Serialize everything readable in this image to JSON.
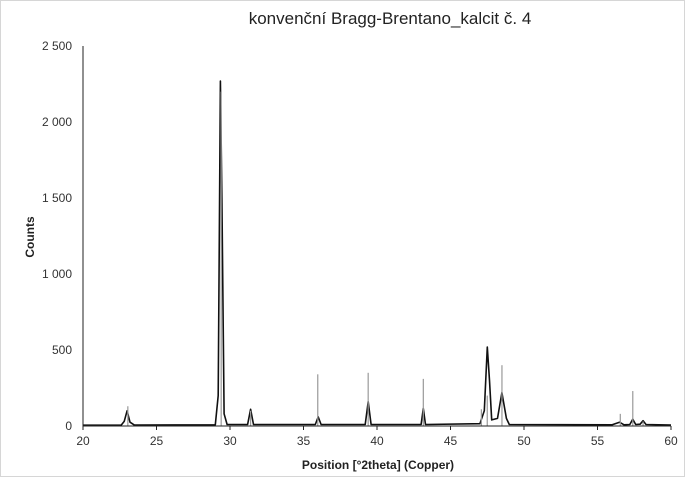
{
  "chart_data": {
    "type": "line",
    "title": "konvenční Bragg-Brentano_kalcit č. 4",
    "xlabel": "Position [°2theta] (Copper)",
    "ylabel": "Counts",
    "xlim": [
      20,
      60
    ],
    "ylim": [
      0,
      2500
    ],
    "x_ticks": [
      "20",
      "25",
      "30",
      "35",
      "40",
      "45",
      "50",
      "55",
      "60"
    ],
    "y_ticks": [
      "0",
      "500",
      "1 000",
      "1 500",
      "2 000",
      "2 500"
    ],
    "grid": false,
    "legend": "none",
    "colors": {
      "pattern": "#111111",
      "reference_sticks": "#999999"
    },
    "series": [
      {
        "style": "profile",
        "x": [
          20.0,
          22.6,
          22.8,
          23.0,
          23.2,
          23.5,
          29.0,
          29.2,
          29.35,
          29.45,
          29.6,
          29.8,
          31.2,
          31.4,
          31.6,
          35.8,
          36.0,
          36.2,
          39.2,
          39.4,
          39.6,
          43.0,
          43.15,
          43.3,
          47.0,
          47.3,
          47.5,
          47.65,
          47.8,
          48.2,
          48.5,
          48.8,
          49.0,
          56.0,
          56.5,
          56.8,
          57.2,
          57.4,
          57.6,
          57.9,
          58.1,
          58.3,
          60.0
        ],
        "y": [
          5,
          6,
          30,
          100,
          25,
          6,
          8,
          200,
          2270,
          1500,
          80,
          10,
          10,
          110,
          10,
          10,
          60,
          10,
          10,
          160,
          10,
          10,
          115,
          10,
          15,
          100,
          520,
          300,
          40,
          50,
          220,
          50,
          10,
          8,
          25,
          8,
          10,
          45,
          10,
          12,
          35,
          10,
          6
        ]
      },
      {
        "style": "sticks",
        "x": [
          23.05,
          29.4,
          31.4,
          35.97,
          39.4,
          43.15,
          47.1,
          47.5,
          48.5,
          56.55,
          57.4,
          58.1
        ],
        "y": [
          130,
          2200,
          100,
          340,
          350,
          310,
          110,
          200,
          400,
          80,
          230,
          30
        ]
      }
    ]
  }
}
